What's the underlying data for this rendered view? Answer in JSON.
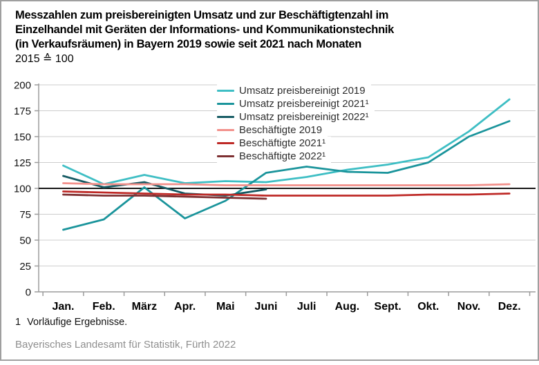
{
  "title": {
    "line1": "Messzahlen zum preisbereinigten Umsatz und zur Beschäftigtenzahl im",
    "line2": "Einzelhandel mit Geräten der Informations- und Kommunikationstechnik",
    "line3": "(in Verkaufsräumen) in Bayern 2019 sowie seit 2021 nach Monaten",
    "subtitle": "2015 ≙ 100"
  },
  "footnote": {
    "marker": "1",
    "text": "Vorläufige Ergebnisse."
  },
  "source": "Bayerisches Landesamt für Statistik, Fürth 2022",
  "chart_data": {
    "type": "line",
    "categories": [
      "Jan.",
      "Feb.",
      "März",
      "Apr.",
      "Mai",
      "Juni",
      "Juli",
      "Aug.",
      "Sept.",
      "Okt.",
      "Nov.",
      "Dez."
    ],
    "series": [
      {
        "name": "Umsatz preisbereinigt 2019",
        "color": "#3EBEC4",
        "values": [
          122,
          104,
          113,
          105,
          107,
          106,
          111,
          118,
          123,
          130,
          155,
          186
        ]
      },
      {
        "name": "Umsatz preisbereinigt 2021¹",
        "color": "#1A949B",
        "values": [
          60,
          70,
          101,
          71,
          88,
          115,
          121,
          116,
          115,
          125,
          150,
          165
        ]
      },
      {
        "name": "Umsatz preisbereinigt 2022¹",
        "color": "#155A63",
        "values": [
          112,
          101,
          106,
          95,
          93,
          99
        ]
      },
      {
        "name": "Beschäftigte 2019",
        "color": "#F2908B",
        "values": [
          105,
          104,
          104,
          104,
          103,
          103,
          103,
          103,
          103,
          103,
          103,
          104
        ]
      },
      {
        "name": "Beschäftigte 2021¹",
        "color": "#BE2926",
        "values": [
          97,
          96,
          95,
          94,
          94,
          93,
          93,
          93,
          93,
          94,
          94,
          95
        ]
      },
      {
        "name": "Beschäftigte 2022¹",
        "color": "#7D2F31",
        "values": [
          94,
          93,
          93,
          92,
          91,
          90
        ]
      }
    ],
    "ylim": [
      0,
      200
    ],
    "yticks": [
      0,
      25,
      50,
      75,
      100,
      125,
      150,
      175,
      200
    ],
    "reference_line": 100,
    "grid": true,
    "legend_position": "top-center-inside"
  }
}
